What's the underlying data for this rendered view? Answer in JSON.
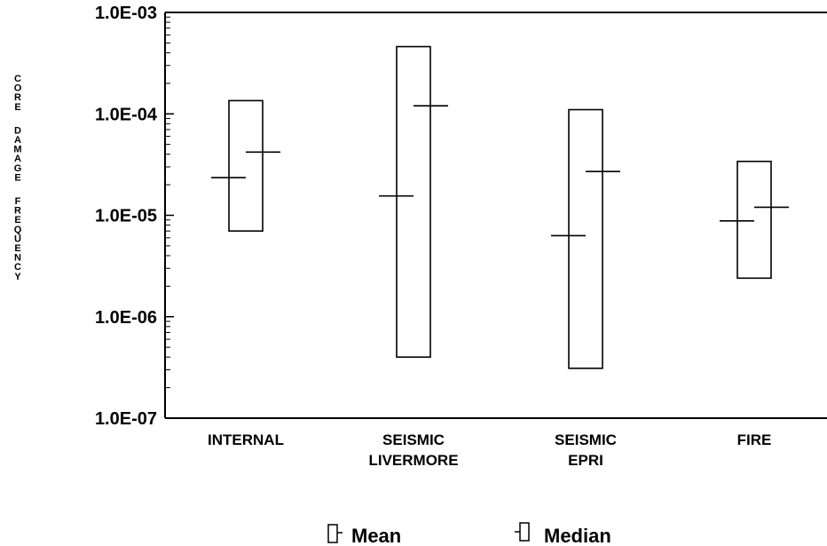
{
  "chart_data": {
    "type": "box",
    "title": "",
    "ylabel": "CORE DAMAGE FREQUENCY",
    "xlabel": "",
    "yscale": "log",
    "ylim": [
      1e-07,
      0.001
    ],
    "ytick_labels": [
      "1.0E-03",
      "1.0E-04",
      "1.0E-05",
      "1.0E-06",
      "1.0E-07"
    ],
    "categories": [
      {
        "label_lines": [
          "INTERNAL"
        ],
        "low": 7e-06,
        "high": 0.000135,
        "mean": 4.2e-05,
        "median": 2.35e-05
      },
      {
        "label_lines": [
          "SEISMIC",
          "LIVERMORE"
        ],
        "low": 4e-07,
        "high": 0.00046,
        "mean": 0.00012,
        "median": 1.55e-05
      },
      {
        "label_lines": [
          "SEISMIC",
          "EPRI"
        ],
        "low": 3.1e-07,
        "high": 0.00011,
        "mean": 2.7e-05,
        "median": 6.3e-06
      },
      {
        "label_lines": [
          "FIRE"
        ],
        "low": 2.4e-06,
        "high": 3.4e-05,
        "mean": 1.2e-05,
        "median": 8.8e-06
      }
    ],
    "legend": {
      "placement": "bottom-center",
      "mean_label": "Mean",
      "median_label": "Median"
    },
    "grid": false
  }
}
